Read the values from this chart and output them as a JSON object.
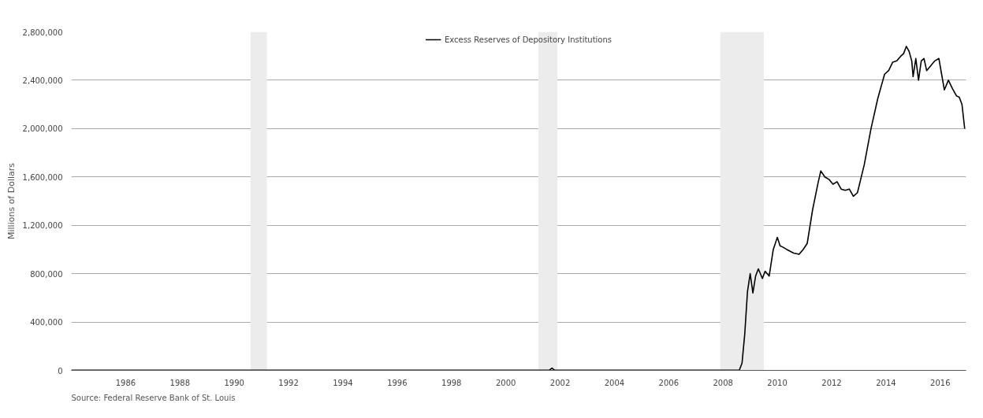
{
  "chart_data": {
    "type": "line",
    "ylabel": "Millions of Dollars",
    "x": [
      1984.0,
      1990.0,
      1995.0,
      2000.0,
      2001.6,
      2001.7,
      2001.8,
      2005.0,
      2008.6,
      2008.7,
      2008.8,
      2008.9,
      2009.0,
      2009.1,
      2009.2,
      2009.3,
      2009.45,
      2009.55,
      2009.7,
      2009.85,
      2010.0,
      2010.1,
      2010.2,
      2010.35,
      2010.6,
      2010.8,
      2010.95,
      2011.1,
      2011.3,
      2011.5,
      2011.6,
      2011.75,
      2011.9,
      2012.05,
      2012.2,
      2012.35,
      2012.5,
      2012.65,
      2012.8,
      2012.95,
      2013.2,
      2013.45,
      2013.7,
      2013.95,
      2014.1,
      2014.25,
      2014.4,
      2014.55,
      2014.65,
      2014.75,
      2014.85,
      2014.95,
      2015.0,
      2015.1,
      2015.2,
      2015.3,
      2015.4,
      2015.5,
      2015.65,
      2015.8,
      2015.95,
      2016.05,
      2016.15,
      2016.3,
      2016.45,
      2016.6,
      2016.7,
      2016.8,
      2016.9
    ],
    "series": [
      {
        "name": "Excess Reserves of Depository Institutions",
        "color": "#000000",
        "values": [
          1000,
          1000,
          1000,
          1000,
          1000,
          19000,
          1000,
          1000,
          2000,
          60000,
          300000,
          650000,
          800000,
          640000,
          780000,
          840000,
          760000,
          820000,
          780000,
          1000000,
          1100000,
          1030000,
          1020000,
          1000000,
          970000,
          960000,
          1000000,
          1050000,
          1330000,
          1550000,
          1650000,
          1600000,
          1580000,
          1540000,
          1560000,
          1500000,
          1490000,
          1500000,
          1440000,
          1470000,
          1700000,
          2000000,
          2250000,
          2450000,
          2480000,
          2550000,
          2560000,
          2600000,
          2620000,
          2680000,
          2640000,
          2560000,
          2430000,
          2580000,
          2400000,
          2560000,
          2580000,
          2480000,
          2520000,
          2560000,
          2580000,
          2450000,
          2320000,
          2400000,
          2330000,
          2270000,
          2260000,
          2200000,
          2000000
        ]
      }
    ],
    "xlim": [
      1984.0,
      2016.95
    ],
    "xticks": [
      1986,
      1988,
      1990,
      1992,
      1994,
      1996,
      1998,
      2000,
      2002,
      2004,
      2006,
      2008,
      2010,
      2012,
      2014,
      2016
    ],
    "ylim": [
      0,
      2800000
    ],
    "yticks": [
      {
        "value": 0,
        "label": "0"
      },
      {
        "value": 400000,
        "label": "400,000"
      },
      {
        "value": 800000,
        "label": "800,000"
      },
      {
        "value": 1200000,
        "label": "1,200,000"
      },
      {
        "value": 1600000,
        "label": "1,600,000"
      },
      {
        "value": 2000000,
        "label": "2,000,000"
      },
      {
        "value": 2400000,
        "label": "2,400,000"
      },
      {
        "value": 2800000,
        "label": "2,800,000"
      }
    ],
    "bands": [
      {
        "axis": "x",
        "from": 1990.6,
        "to": 1991.2,
        "color": "#ececec"
      },
      {
        "axis": "x",
        "from": 2001.2,
        "to": 2001.9,
        "color": "#ececec"
      },
      {
        "axis": "x",
        "from": 2007.9,
        "to": 2009.5,
        "color": "#ececec"
      }
    ],
    "grid": "y",
    "legend": "top",
    "line_style": "solid",
    "annotations": [
      "Source: Federal Reserve Bank of St. Louis"
    ]
  }
}
